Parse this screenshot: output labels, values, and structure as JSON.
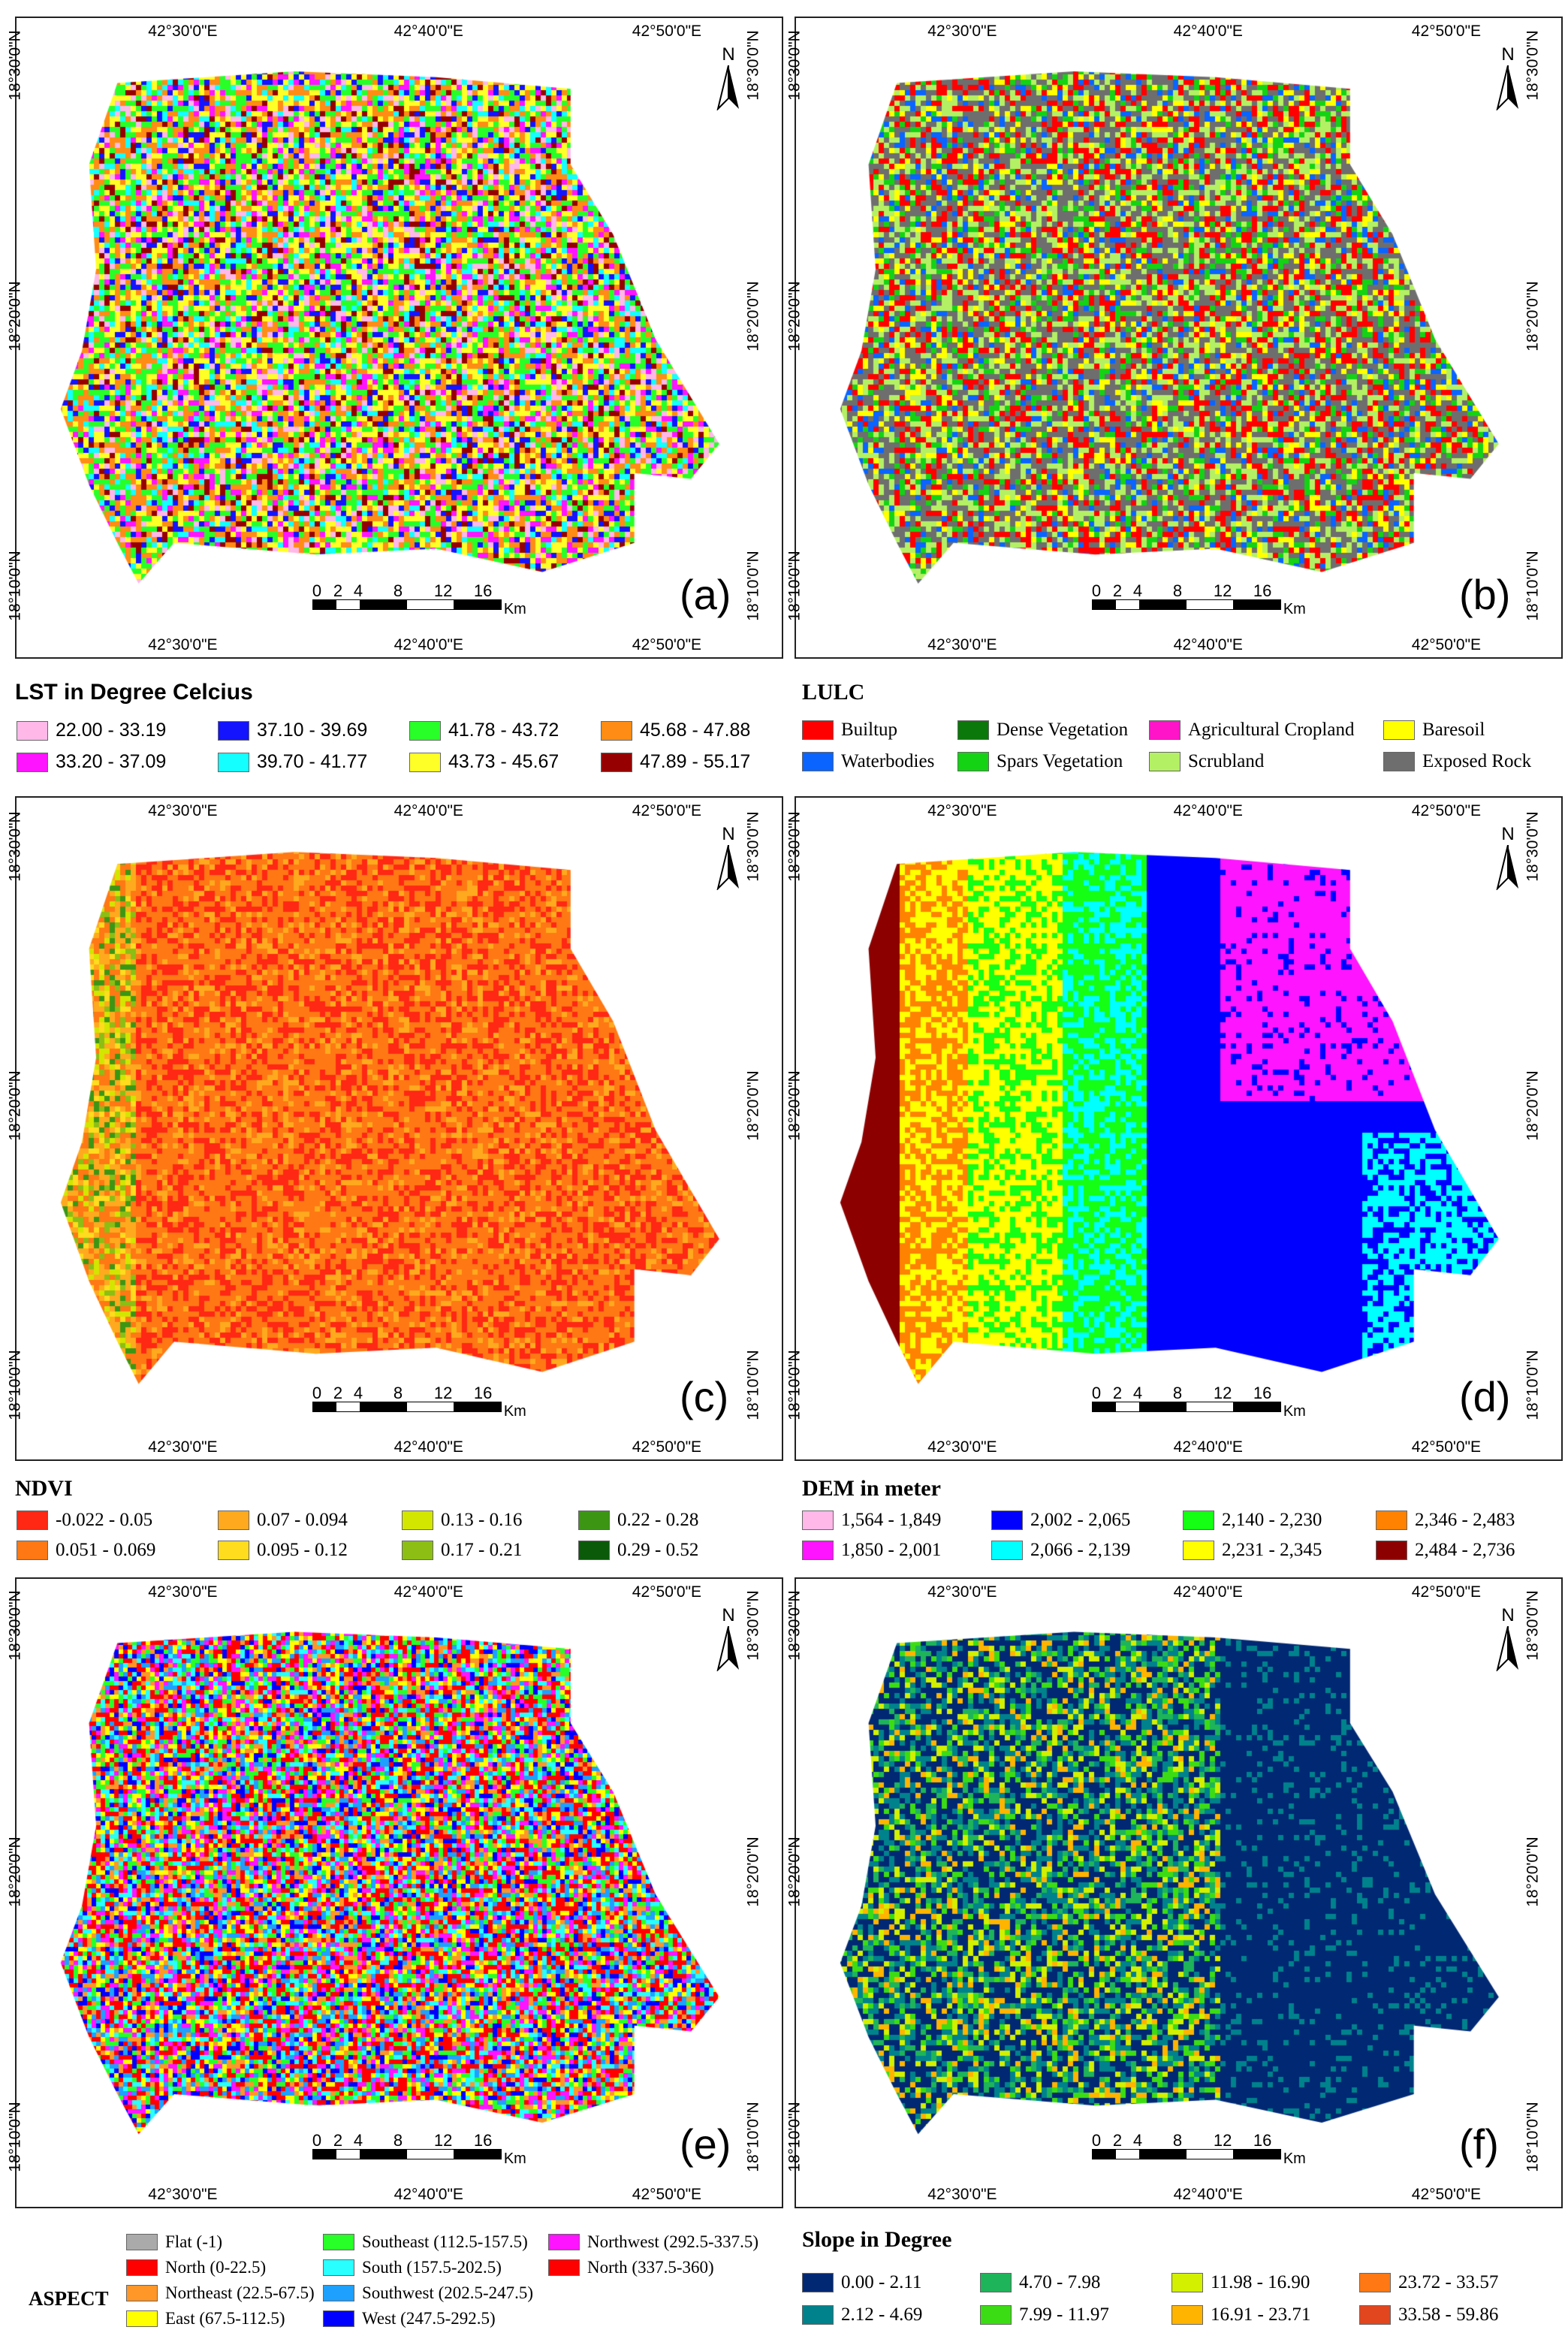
{
  "x_ticks": [
    "42°30'0\"E",
    "42°40'0\"E",
    "42°50'0\"E"
  ],
  "y_ticks": [
    "18°30'0\"N",
    "18°20'0\"N",
    "18°10'0\"N"
  ],
  "north_label": "N",
  "scale": {
    "marks": [
      "0",
      "2",
      "4",
      "8",
      "12",
      "16"
    ],
    "unit": "Km"
  },
  "panels": [
    {
      "label": "(a)"
    },
    {
      "label": "(b)"
    },
    {
      "label": "(c)"
    },
    {
      "label": "(d)"
    },
    {
      "label": "(e)"
    },
    {
      "label": "(f)"
    }
  ],
  "legends": {
    "lst": {
      "title": "LST in Degree Celcius",
      "items": [
        {
          "label": "22.00 - 33.19",
          "color": "#ffb8e8"
        },
        {
          "label": "33.20 - 37.09",
          "color": "#ff14ff"
        },
        {
          "label": "37.10 - 39.69",
          "color": "#1414ff"
        },
        {
          "label": "39.70 - 41.77",
          "color": "#14ffff"
        },
        {
          "label": "41.78 - 43.72",
          "color": "#28ff28"
        },
        {
          "label": "43.73 - 45.67",
          "color": "#ffff28"
        },
        {
          "label": "45.68 - 47.88",
          "color": "#ff8c14"
        },
        {
          "label": "47.89 - 55.17",
          "color": "#960000"
        }
      ]
    },
    "lulc": {
      "title": "LULC",
      "items": [
        {
          "label": "Builtup",
          "color": "#ff0000"
        },
        {
          "label": "Waterbodies",
          "color": "#0a64ff"
        },
        {
          "label": "Dense Vegetation",
          "color": "#0a780a"
        },
        {
          "label": "Spars Vegetation",
          "color": "#14d214"
        },
        {
          "label": "Agricultural Cropland",
          "color": "#ff14c8"
        },
        {
          "label": "Scrubland",
          "color": "#b4f064"
        },
        {
          "label": "Baresoil",
          "color": "#ffff00"
        },
        {
          "label": "Exposed Rock",
          "color": "#6e6e6e"
        }
      ]
    },
    "ndvi": {
      "title": "NDVI",
      "items": [
        {
          "label": "-0.022 - 0.05",
          "color": "#ff2814"
        },
        {
          "label": "0.051 - 0.069",
          "color": "#ff7814"
        },
        {
          "label": "0.07 - 0.094",
          "color": "#ffaa1e"
        },
        {
          "label": "0.095 - 0.12",
          "color": "#ffdc1e"
        },
        {
          "label": "0.13 - 0.16",
          "color": "#d2e600"
        },
        {
          "label": "0.17 - 0.21",
          "color": "#8cbe14"
        },
        {
          "label": "0.22 - 0.28",
          "color": "#3c9614"
        },
        {
          "label": "0.29 - 0.52",
          "color": "#0a5a0a"
        }
      ]
    },
    "dem": {
      "title": "DEM in meter",
      "items": [
        {
          "label": "1,564 - 1,849",
          "color": "#ffb8e8"
        },
        {
          "label": "1,850 - 2,001",
          "color": "#ff14ff"
        },
        {
          "label": "2,002 - 2,065",
          "color": "#0000ff"
        },
        {
          "label": "2,066 - 2,139",
          "color": "#00ffff"
        },
        {
          "label": "2,140 - 2,230",
          "color": "#14ff14"
        },
        {
          "label": "2,231 - 2,345",
          "color": "#ffff00"
        },
        {
          "label": "2,346 - 2,483",
          "color": "#ff8200"
        },
        {
          "label": "2,484 - 2,736",
          "color": "#8c0000"
        }
      ]
    },
    "aspect": {
      "title": "ASPECT",
      "items": [
        {
          "label": "Flat (-1)",
          "color": "#aaaaaa"
        },
        {
          "label": "North (0-22.5)",
          "color": "#ff0000"
        },
        {
          "label": "Northeast (22.5-67.5)",
          "color": "#ff9628"
        },
        {
          "label": "East (67.5-112.5)",
          "color": "#ffff00"
        },
        {
          "label": "Southeast (112.5-157.5)",
          "color": "#28ff28"
        },
        {
          "label": "South (157.5-202.5)",
          "color": "#28ffff"
        },
        {
          "label": "Southwest (202.5-247.5)",
          "color": "#1ea0ff"
        },
        {
          "label": "West (247.5-292.5)",
          "color": "#0000ff"
        },
        {
          "label": "Northwest (292.5-337.5)",
          "color": "#ff14ff"
        },
        {
          "label": "North (337.5-360)",
          "color": "#ff0000"
        }
      ]
    },
    "slope": {
      "title": "Slope in Degree",
      "items": [
        {
          "label": "0.00 - 2.11",
          "color": "#002873"
        },
        {
          "label": "2.12 - 4.69",
          "color": "#00828c"
        },
        {
          "label": "4.70 - 7.98",
          "color": "#1eb45a"
        },
        {
          "label": "7.99 - 11.97",
          "color": "#3cdc14"
        },
        {
          "label": "11.98 - 16.90",
          "color": "#d2f000"
        },
        {
          "label": "16.91 - 23.71",
          "color": "#ffb400"
        },
        {
          "label": "23.72 - 33.57",
          "color": "#ff7814"
        },
        {
          "label": "33.58 - 59.86",
          "color": "#e1461e"
        }
      ]
    }
  }
}
